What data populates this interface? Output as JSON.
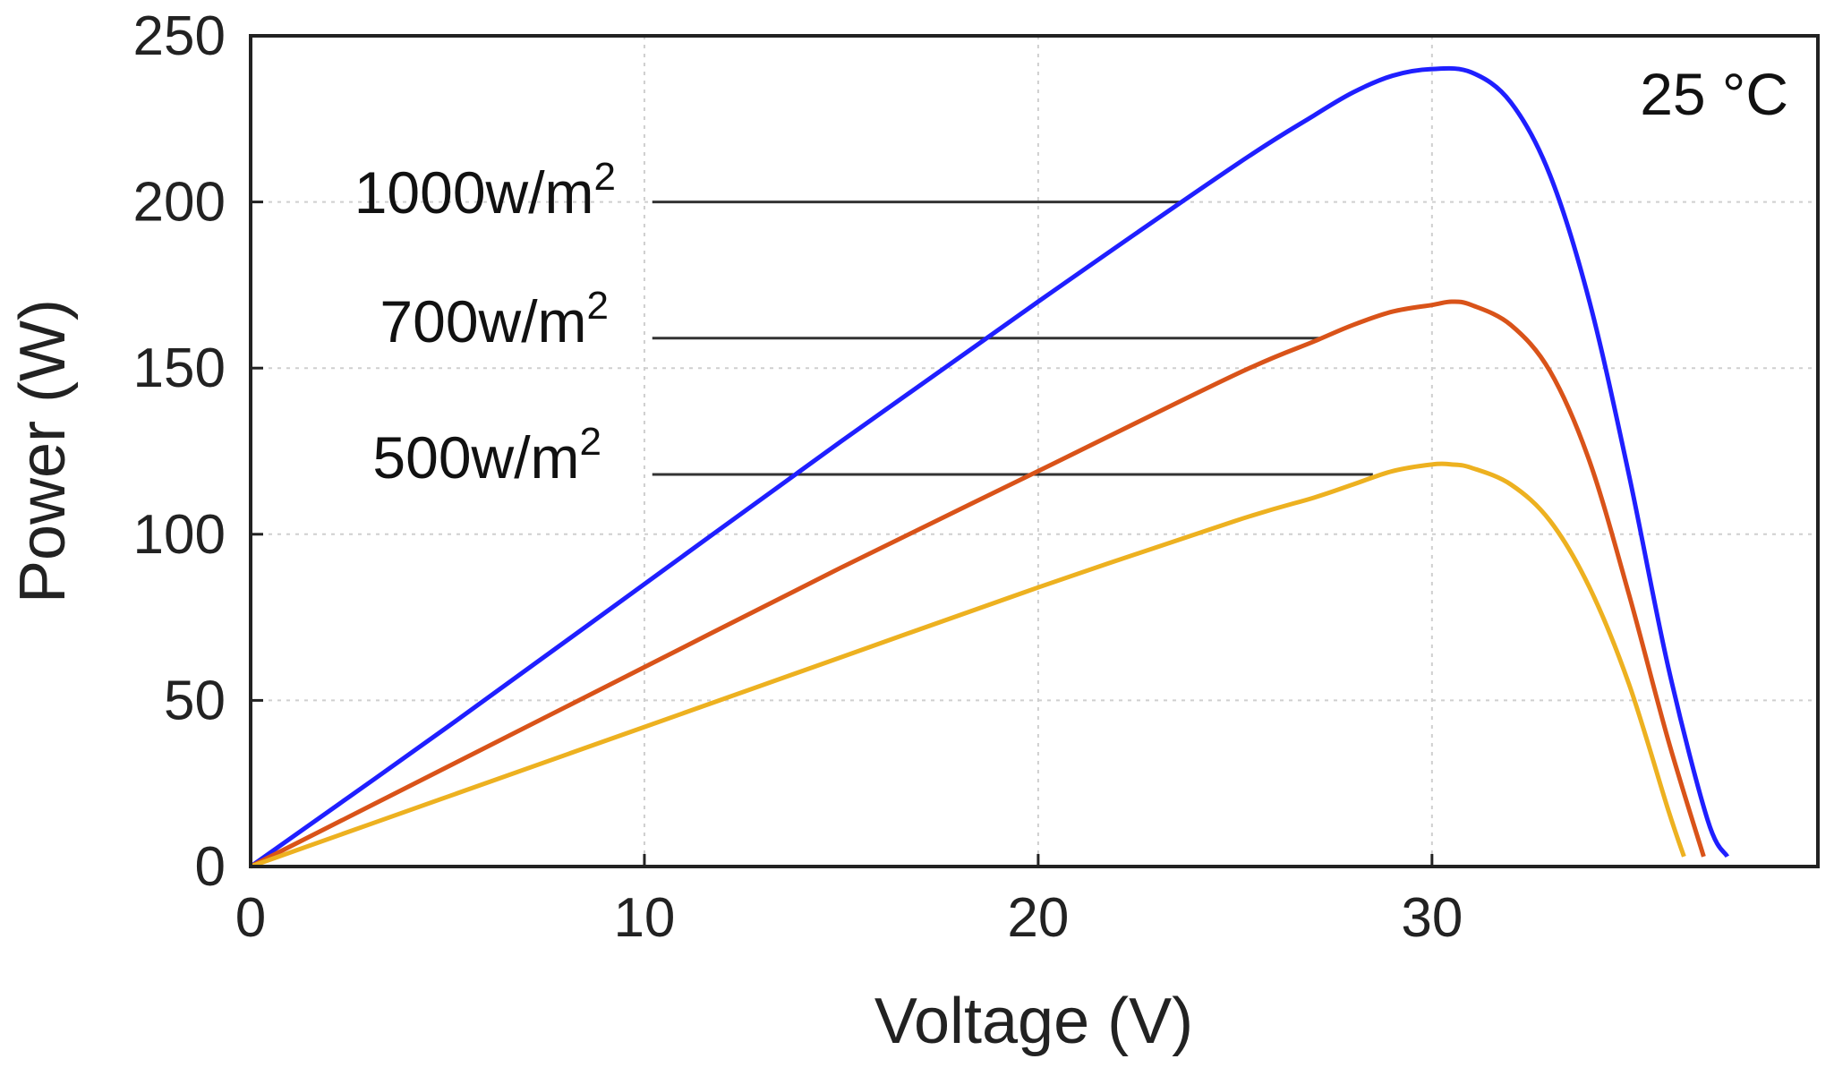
{
  "chart_data": {
    "type": "line",
    "title": "",
    "annotation": "25 °C",
    "xlabel": "Voltage (V)",
    "ylabel": "Power (W)",
    "xlim": [
      0,
      39.8
    ],
    "ylim": [
      0,
      250
    ],
    "xticks": [
      0,
      10,
      20,
      30
    ],
    "yticks": [
      0,
      50,
      100,
      150,
      200,
      250
    ],
    "grid": true,
    "colors": [
      "#1f1fff",
      "#d95319",
      "#edb120"
    ],
    "series": [
      {
        "name": "1000w/m2",
        "label_base": "1000w/m",
        "label_sup": "2",
        "color": "#1f1fff",
        "x": [
          0,
          5,
          10,
          15,
          20,
          25,
          27,
          28,
          29,
          30,
          31,
          32,
          33,
          34,
          35,
          36,
          37,
          37.5
        ],
        "y": [
          0,
          42,
          85,
          128,
          170,
          211,
          226,
          233,
          238,
          240,
          239,
          230,
          208,
          170,
          118,
          60,
          14,
          3
        ]
      },
      {
        "name": "700w/m2",
        "label_base": "700w/m",
        "label_sup": "2",
        "color": "#d95319",
        "x": [
          0,
          5,
          10,
          15,
          20,
          25,
          27,
          28,
          29,
          30,
          30.5,
          31,
          32,
          33,
          34,
          35,
          36,
          36.9
        ],
        "y": [
          0,
          30,
          60,
          90,
          119,
          148,
          158,
          163,
          167,
          169,
          170,
          169,
          163,
          149,
          122,
          82,
          38,
          3
        ]
      },
      {
        "name": "500w/m2",
        "label_base": "500w/m",
        "label_sup": "2",
        "color": "#edb120",
        "x": [
          0,
          5,
          10,
          15,
          20,
          25,
          27,
          28,
          29,
          30,
          30.5,
          31,
          32,
          33,
          34,
          35,
          36,
          36.4
        ],
        "y": [
          0,
          21,
          42,
          63,
          84,
          104,
          111,
          115,
          119,
          121,
          121,
          120,
          115,
          104,
          84,
          55,
          17,
          3
        ]
      }
    ],
    "reference_lines": [
      {
        "series": "1000w/m2",
        "y": 200,
        "x_start": 10.2,
        "x_end": 23.6
      },
      {
        "series": "700w/m2",
        "y": 159,
        "x_start": 10.2,
        "x_end": 27.2
      },
      {
        "series": "500w/m2",
        "y": 118,
        "x_start": 10.2,
        "x_end": 28.5
      }
    ]
  }
}
